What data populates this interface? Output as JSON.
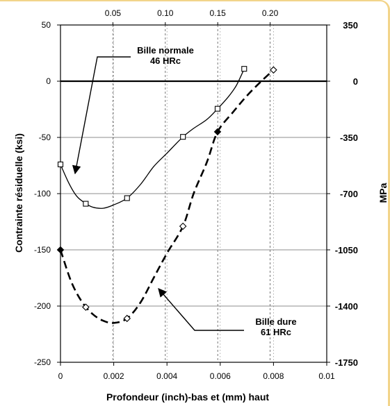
{
  "chart_data": {
    "type": "line",
    "ylabel": "Contrainte résiduelle (ksi)",
    "y2label": "MPa",
    "xlabel": "Profondeur (inch)-bas et (mm) haut",
    "xlim": [
      0,
      0.01
    ],
    "ylim": [
      -250,
      50
    ],
    "x_ticks": [
      "0",
      "0.002",
      "0.004",
      "0.006",
      "0.008",
      "0.01"
    ],
    "x_tick_values": [
      0,
      0.002,
      0.004,
      0.006,
      0.008,
      0.01
    ],
    "x2_ticks": [
      "0.05",
      "0.10",
      "0.15",
      "0.20"
    ],
    "x2_tick_values": [
      0.05,
      0.1,
      0.15,
      0.2
    ],
    "y_ticks": [
      "50",
      "0",
      "-50",
      "-100",
      "-150",
      "-200",
      "-250"
    ],
    "y_tick_values": [
      50,
      0,
      -50,
      -100,
      -150,
      -200,
      -250
    ],
    "y2_ticks": [
      "350",
      "0",
      "-350",
      "-700",
      "-1050",
      "-1400",
      "-1750"
    ],
    "y2_tick_values": [
      350,
      0,
      -350,
      -700,
      -1050,
      -1400,
      -1750
    ],
    "grid": "vertical dashed + horizontal solid",
    "series": [
      {
        "name": "Bille normale 46 HRc",
        "style": "solid",
        "marker": "square",
        "points": [
          [
            0,
            -74
          ],
          [
            0.00095,
            -109
          ],
          [
            0.0025,
            -104
          ],
          [
            0.0046,
            -49.5
          ],
          [
            0.0059,
            -24.5
          ],
          [
            0.0069,
            11
          ]
        ],
        "curve": [
          [
            0,
            -74
          ],
          [
            0.0003,
            -90
          ],
          [
            0.0006,
            -102
          ],
          [
            0.0009,
            -108
          ],
          [
            0.0012,
            -112
          ],
          [
            0.0016,
            -113
          ],
          [
            0.002,
            -110
          ],
          [
            0.0025,
            -104
          ],
          [
            0.003,
            -92
          ],
          [
            0.0035,
            -76
          ],
          [
            0.004,
            -64
          ],
          [
            0.0046,
            -49.5
          ],
          [
            0.005,
            -42
          ],
          [
            0.0055,
            -34
          ],
          [
            0.0059,
            -24.5
          ],
          [
            0.0063,
            -14
          ],
          [
            0.0066,
            -4
          ],
          [
            0.0069,
            11
          ]
        ]
      },
      {
        "name": "Bille dure 61 HRc",
        "style": "dashed",
        "marker": "diamond",
        "points": [
          [
            0,
            -150
          ],
          [
            0.00095,
            -201
          ],
          [
            0.0025,
            -211
          ],
          [
            0.0046,
            -129
          ],
          [
            0.0059,
            -45
          ],
          [
            0.008,
            10
          ]
        ],
        "curve": [
          [
            0,
            -150
          ],
          [
            0.0004,
            -178
          ],
          [
            0.0008,
            -196
          ],
          [
            0.0012,
            -207
          ],
          [
            0.0016,
            -213
          ],
          [
            0.002,
            -215
          ],
          [
            0.0025,
            -211
          ],
          [
            0.003,
            -197
          ],
          [
            0.0035,
            -175
          ],
          [
            0.004,
            -153
          ],
          [
            0.0046,
            -129
          ],
          [
            0.005,
            -100
          ],
          [
            0.0055,
            -72
          ],
          [
            0.0059,
            -45
          ],
          [
            0.0065,
            -27
          ],
          [
            0.007,
            -13
          ],
          [
            0.0075,
            -1
          ],
          [
            0.008,
            10
          ]
        ]
      }
    ],
    "annotations": {
      "normal_line1": "Bille normale",
      "normal_line2": "46 HRc",
      "hard_line1": "Bille dure",
      "hard_line2": "61 HRc"
    }
  }
}
